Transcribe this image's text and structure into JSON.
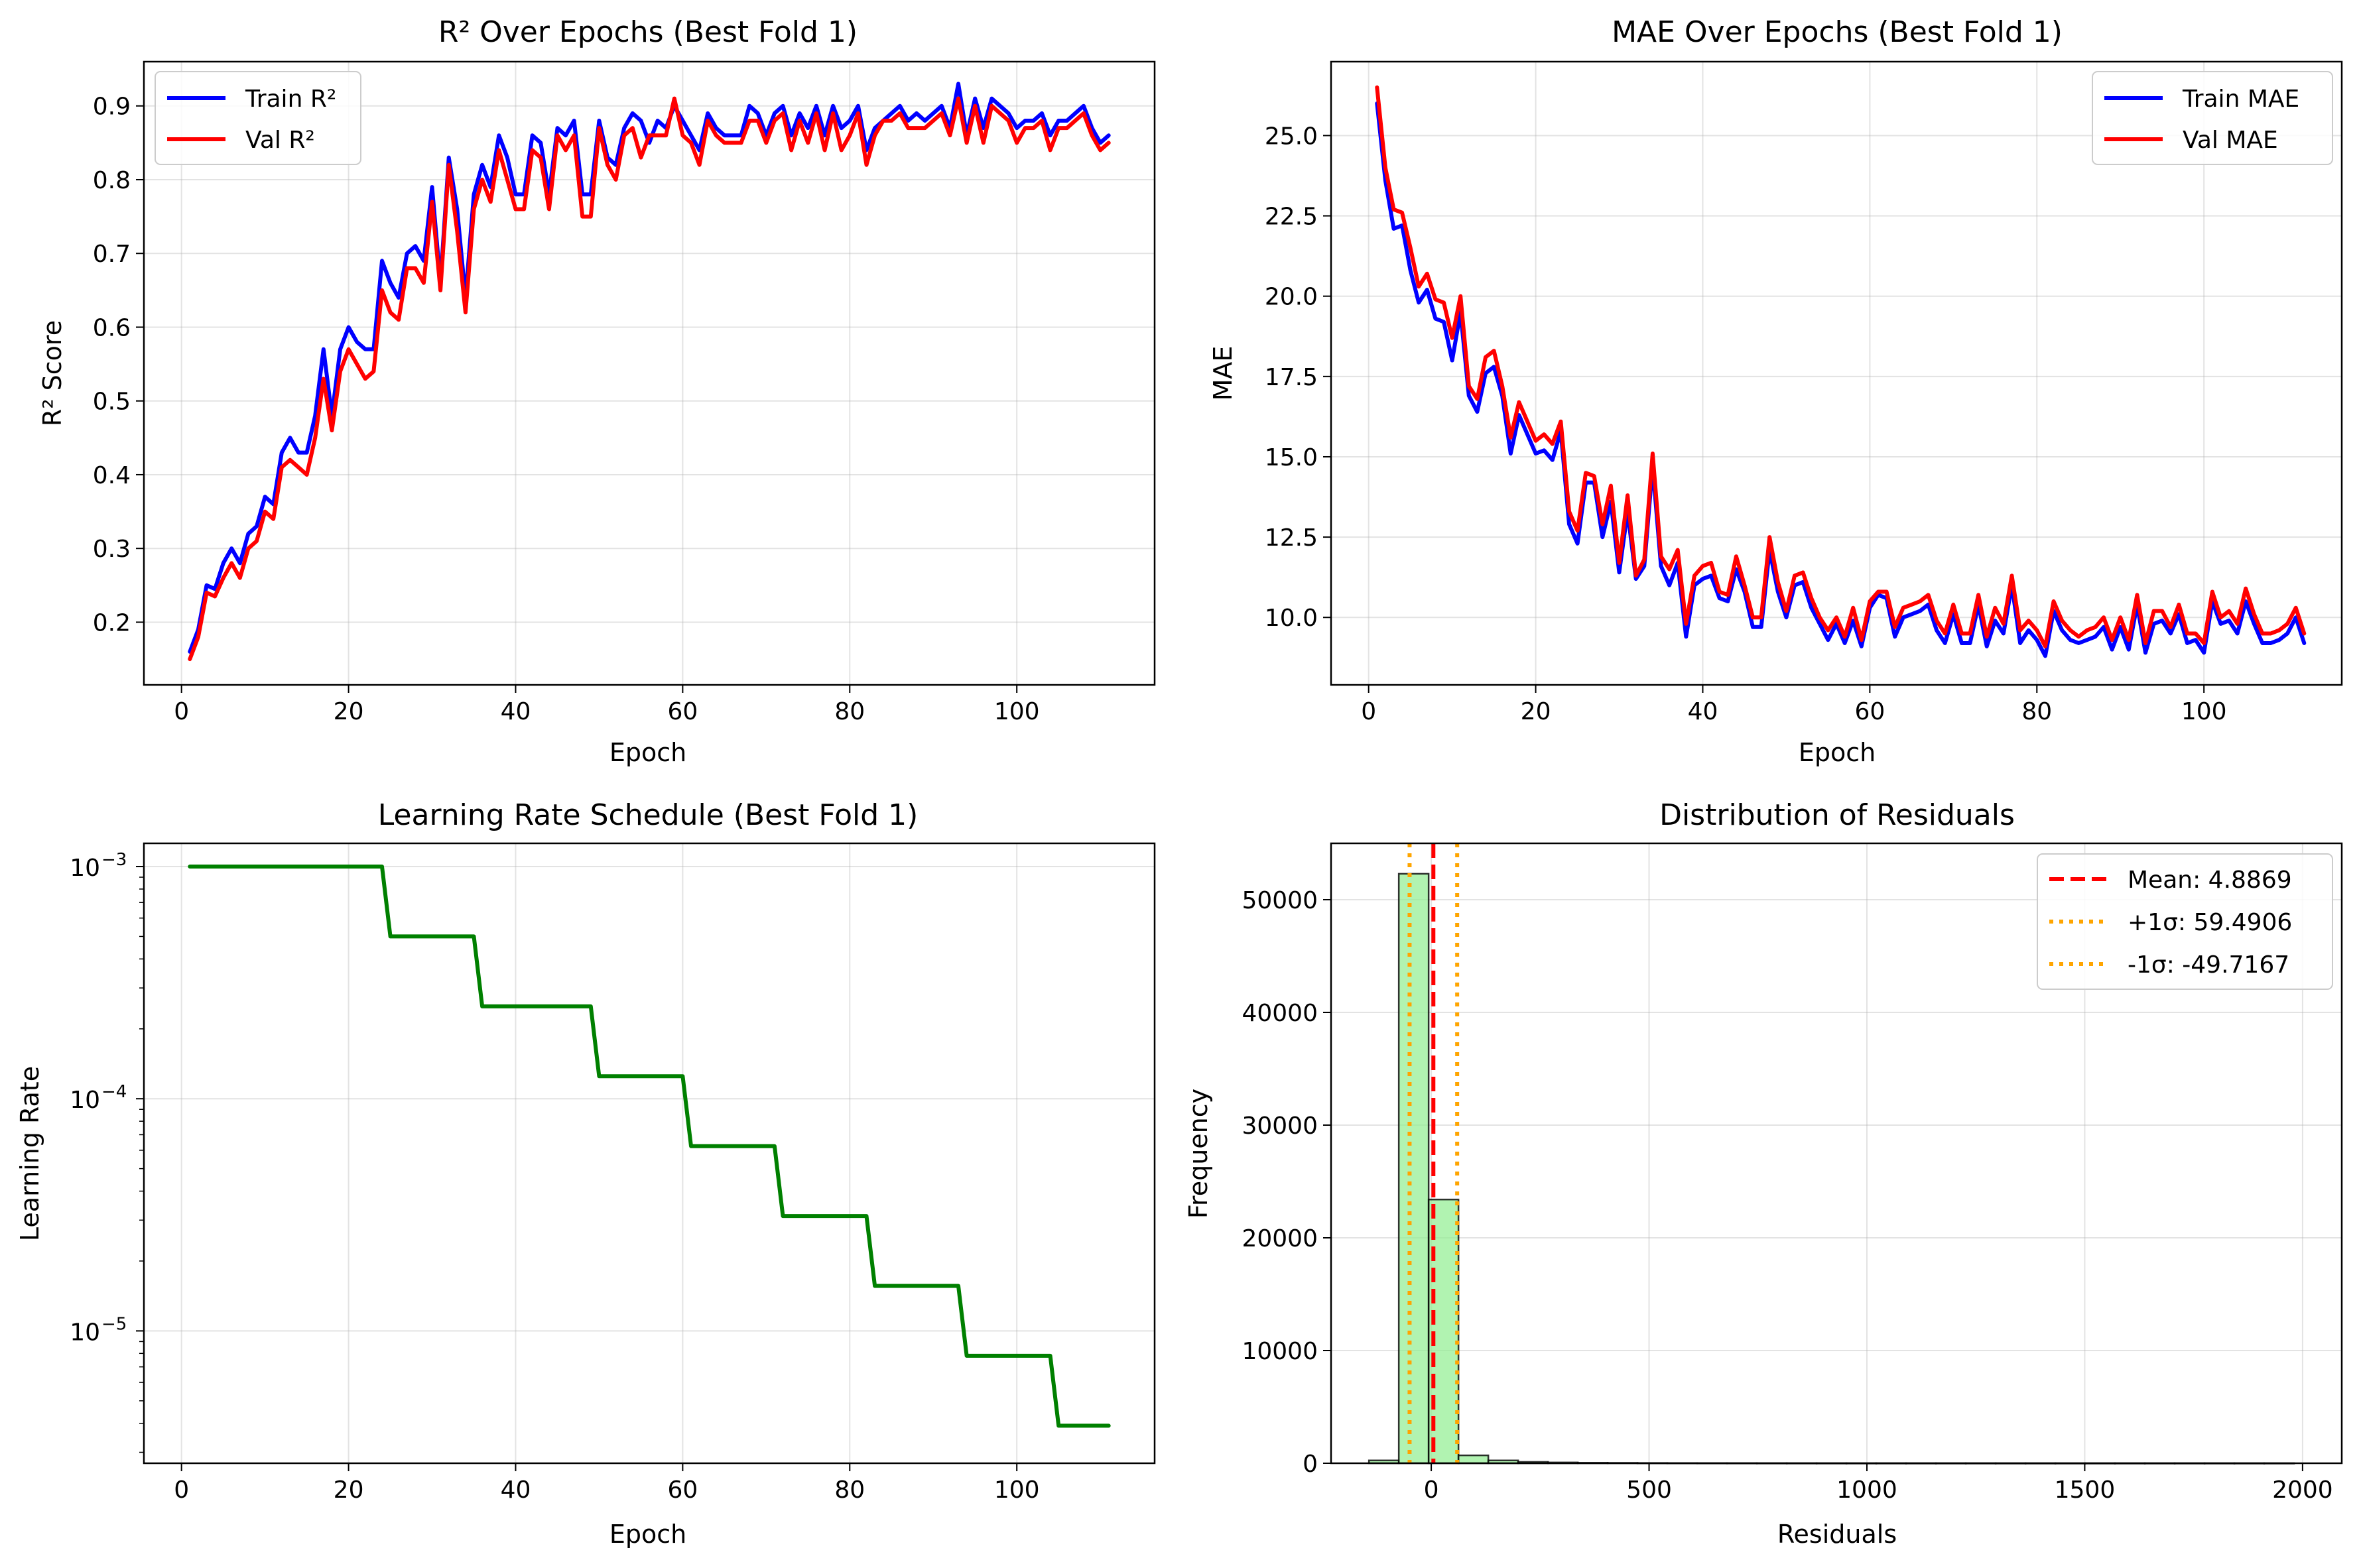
{
  "chart_data": [
    {
      "id": "r2",
      "type": "line",
      "title": "R² Over Epochs (Best Fold 1)",
      "xlabel": "Epoch",
      "ylabel": "R² Score",
      "xlim": [
        -4.5,
        116.5
      ],
      "ylim": [
        0.115,
        0.96
      ],
      "xticks": [
        0,
        20,
        40,
        60,
        80,
        100
      ],
      "yticks": [
        0.2,
        0.3,
        0.4,
        0.5,
        0.6,
        0.7,
        0.8,
        0.9
      ],
      "ytick_labels": [
        "0.2",
        "0.3",
        "0.4",
        "0.5",
        "0.6",
        "0.7",
        "0.8",
        "0.9"
      ],
      "grid": true,
      "legend": "upper left",
      "series": [
        {
          "name": "Train R²",
          "color": "#0000ff",
          "x_start": 1,
          "values": [
            0.16,
            0.19,
            0.25,
            0.245,
            0.28,
            0.3,
            0.28,
            0.32,
            0.33,
            0.37,
            0.36,
            0.43,
            0.45,
            0.43,
            0.43,
            0.48,
            0.57,
            0.48,
            0.57,
            0.6,
            0.58,
            0.57,
            0.57,
            0.69,
            0.66,
            0.64,
            0.7,
            0.71,
            0.69,
            0.79,
            0.66,
            0.83,
            0.76,
            0.64,
            0.78,
            0.82,
            0.79,
            0.86,
            0.83,
            0.78,
            0.78,
            0.86,
            0.85,
            0.78,
            0.87,
            0.86,
            0.88,
            0.78,
            0.78,
            0.88,
            0.83,
            0.82,
            0.87,
            0.89,
            0.88,
            0.85,
            0.88,
            0.87,
            0.9,
            0.88,
            0.86,
            0.84,
            0.89,
            0.87,
            0.86,
            0.86,
            0.86,
            0.9,
            0.89,
            0.86,
            0.89,
            0.9,
            0.86,
            0.89,
            0.87,
            0.9,
            0.86,
            0.9,
            0.87,
            0.88,
            0.9,
            0.84,
            0.87,
            0.88,
            0.89,
            0.9,
            0.88,
            0.89,
            0.88,
            0.89,
            0.9,
            0.87,
            0.93,
            0.86,
            0.91,
            0.87,
            0.91,
            0.9,
            0.89,
            0.87,
            0.88,
            0.88,
            0.89,
            0.86,
            0.88,
            0.88,
            0.89,
            0.9,
            0.87,
            0.85,
            0.86
          ]
        },
        {
          "name": "Val R²",
          "color": "#ff0000",
          "x_start": 1,
          "values": [
            0.15,
            0.18,
            0.24,
            0.235,
            0.26,
            0.28,
            0.26,
            0.3,
            0.31,
            0.35,
            0.34,
            0.41,
            0.42,
            0.41,
            0.4,
            0.45,
            0.53,
            0.46,
            0.54,
            0.57,
            0.55,
            0.53,
            0.54,
            0.65,
            0.62,
            0.61,
            0.68,
            0.68,
            0.66,
            0.77,
            0.65,
            0.82,
            0.73,
            0.62,
            0.76,
            0.8,
            0.77,
            0.84,
            0.8,
            0.76,
            0.76,
            0.84,
            0.83,
            0.76,
            0.86,
            0.84,
            0.86,
            0.75,
            0.75,
            0.87,
            0.82,
            0.8,
            0.86,
            0.87,
            0.83,
            0.86,
            0.86,
            0.86,
            0.91,
            0.86,
            0.85,
            0.82,
            0.88,
            0.86,
            0.85,
            0.85,
            0.85,
            0.88,
            0.88,
            0.85,
            0.88,
            0.89,
            0.84,
            0.88,
            0.85,
            0.89,
            0.84,
            0.89,
            0.84,
            0.86,
            0.89,
            0.82,
            0.86,
            0.88,
            0.88,
            0.89,
            0.87,
            0.87,
            0.87,
            0.88,
            0.89,
            0.86,
            0.91,
            0.85,
            0.9,
            0.85,
            0.9,
            0.89,
            0.88,
            0.85,
            0.87,
            0.87,
            0.88,
            0.84,
            0.87,
            0.87,
            0.88,
            0.89,
            0.86,
            0.84,
            0.85
          ]
        }
      ]
    },
    {
      "id": "mae",
      "type": "line",
      "title": "MAE Over Epochs (Best Fold 1)",
      "xlabel": "Epoch",
      "ylabel": "MAE",
      "xlim": [
        -4.5,
        116.5
      ],
      "ylim": [
        7.9,
        27.3
      ],
      "xticks": [
        0,
        20,
        40,
        60,
        80,
        100
      ],
      "yticks": [
        10.0,
        12.5,
        15.0,
        17.5,
        20.0,
        22.5,
        25.0
      ],
      "ytick_labels": [
        "10.0",
        "12.5",
        "15.0",
        "17.5",
        "20.0",
        "22.5",
        "25.0"
      ],
      "grid": true,
      "legend": "upper right",
      "series": [
        {
          "name": "Train MAE",
          "color": "#0000ff",
          "x_start": 1,
          "values": [
            26.0,
            23.6,
            22.1,
            22.2,
            20.8,
            19.8,
            20.2,
            19.3,
            19.2,
            18.0,
            19.5,
            16.9,
            16.4,
            17.6,
            17.8,
            16.9,
            15.1,
            16.3,
            15.7,
            15.1,
            15.2,
            14.9,
            15.8,
            12.9,
            12.3,
            14.2,
            14.2,
            12.5,
            13.6,
            11.4,
            13.3,
            11.2,
            11.6,
            14.7,
            11.6,
            11.0,
            11.7,
            9.4,
            11.0,
            11.2,
            11.3,
            10.6,
            10.5,
            11.5,
            10.8,
            9.7,
            9.7,
            12.1,
            10.8,
            10.0,
            11.0,
            11.1,
            10.3,
            9.8,
            9.3,
            9.8,
            9.2,
            9.9,
            9.1,
            10.3,
            10.7,
            10.6,
            9.4,
            10.0,
            10.1,
            10.2,
            10.4,
            9.6,
            9.2,
            10.1,
            9.2,
            9.2,
            10.4,
            9.1,
            9.9,
            9.5,
            11.0,
            9.2,
            9.6,
            9.3,
            8.8,
            10.2,
            9.6,
            9.3,
            9.2,
            9.3,
            9.4,
            9.7,
            9.0,
            9.7,
            9.0,
            10.4,
            8.9,
            9.8,
            9.9,
            9.5,
            10.1,
            9.2,
            9.3,
            8.9,
            10.5,
            9.8,
            9.9,
            9.5,
            10.5,
            9.8,
            9.2,
            9.2,
            9.3,
            9.5,
            10.0,
            9.2
          ]
        },
        {
          "name": "Val MAE",
          "color": "#ff0000",
          "x_start": 1,
          "values": [
            26.5,
            24.0,
            22.7,
            22.6,
            21.5,
            20.3,
            20.7,
            19.9,
            19.8,
            18.7,
            20.0,
            17.2,
            16.8,
            18.1,
            18.3,
            17.2,
            15.6,
            16.7,
            16.1,
            15.5,
            15.7,
            15.4,
            16.1,
            13.3,
            12.7,
            14.5,
            14.4,
            12.9,
            14.1,
            11.7,
            13.8,
            11.3,
            11.8,
            15.1,
            11.9,
            11.5,
            12.1,
            9.8,
            11.3,
            11.6,
            11.7,
            10.8,
            10.7,
            11.9,
            11.0,
            10.0,
            10.0,
            12.5,
            11.1,
            10.2,
            11.3,
            11.4,
            10.6,
            10.0,
            9.6,
            10.0,
            9.4,
            10.3,
            9.3,
            10.5,
            10.8,
            10.8,
            9.7,
            10.3,
            10.4,
            10.5,
            10.7,
            9.9,
            9.5,
            10.4,
            9.5,
            9.5,
            10.7,
            9.4,
            10.3,
            9.8,
            11.3,
            9.6,
            9.9,
            9.6,
            9.1,
            10.5,
            9.9,
            9.6,
            9.4,
            9.6,
            9.7,
            10.0,
            9.3,
            10.0,
            9.3,
            10.7,
            9.2,
            10.2,
            10.2,
            9.7,
            10.4,
            9.5,
            9.5,
            9.2,
            10.8,
            10.0,
            10.2,
            9.8,
            10.9,
            10.1,
            9.5,
            9.5,
            9.6,
            9.8,
            10.3,
            9.5
          ]
        }
      ]
    },
    {
      "id": "lr",
      "type": "line",
      "title": "Learning Rate Schedule (Best Fold 1)",
      "xlabel": "Epoch",
      "ylabel": "Learning Rate",
      "xlim": [
        -4.5,
        116.5
      ],
      "ylim_log10": [
        -5.57,
        -2.9
      ],
      "yscale": "log",
      "xticks": [
        0,
        20,
        40,
        60,
        80,
        100
      ],
      "yticks_log10": [
        -5,
        -4,
        -3
      ],
      "ytick_labels": [
        "10",
        "10",
        "10"
      ],
      "ytick_exponents": [
        "−5",
        "−4",
        "−3"
      ],
      "grid": true,
      "series": [
        {
          "name": "",
          "color": "#008000",
          "x": [
            1,
            24,
            25,
            35,
            36,
            49,
            50,
            60,
            61,
            71,
            72,
            82,
            83,
            93,
            94,
            104,
            105,
            111
          ],
          "values": [
            0.001,
            0.001,
            0.0005,
            0.0005,
            0.00025,
            0.00025,
            0.000125,
            0.000125,
            6.25e-05,
            6.25e-05,
            3.125e-05,
            3.125e-05,
            1.5625e-05,
            1.5625e-05,
            7.8125e-06,
            7.8125e-06,
            3.90625e-06,
            3.90625e-06
          ]
        }
      ]
    },
    {
      "id": "residuals",
      "type": "bar",
      "title": "Distribution of Residuals",
      "xlabel": "Residuals",
      "ylabel": "Frequency",
      "xlim": [
        -230,
        2090
      ],
      "ylim": [
        0,
        55000
      ],
      "xticks": [
        0,
        500,
        1000,
        1500,
        2000
      ],
      "yticks": [
        0,
        10000,
        20000,
        30000,
        40000,
        50000
      ],
      "ytick_labels": [
        "0",
        "10000",
        "20000",
        "30000",
        "40000",
        "50000"
      ],
      "grid": true,
      "legend": "upper right",
      "bar_color": "#90ee90",
      "bar_edge": "#000000",
      "bins": {
        "start": -143,
        "width": 68.5,
        "counts": [
          250,
          52300,
          23400,
          700,
          250,
          120,
          70,
          40,
          30,
          20,
          15,
          12,
          10,
          8,
          6,
          5,
          4,
          4,
          3,
          3,
          3,
          2,
          2,
          2,
          2,
          2,
          2,
          2,
          2,
          2,
          2
        ]
      },
      "vlines": [
        {
          "label": "Mean: 4.8869",
          "x": 4.8869,
          "color": "#ff0000",
          "style": "dashed"
        },
        {
          "label": "+1σ: 59.4906",
          "x": 59.4906,
          "color": "#ffa500",
          "style": "dotted"
        },
        {
          "label": "-1σ: -49.7167",
          "x": -49.7167,
          "color": "#ffa500",
          "style": "dotted"
        }
      ]
    }
  ]
}
